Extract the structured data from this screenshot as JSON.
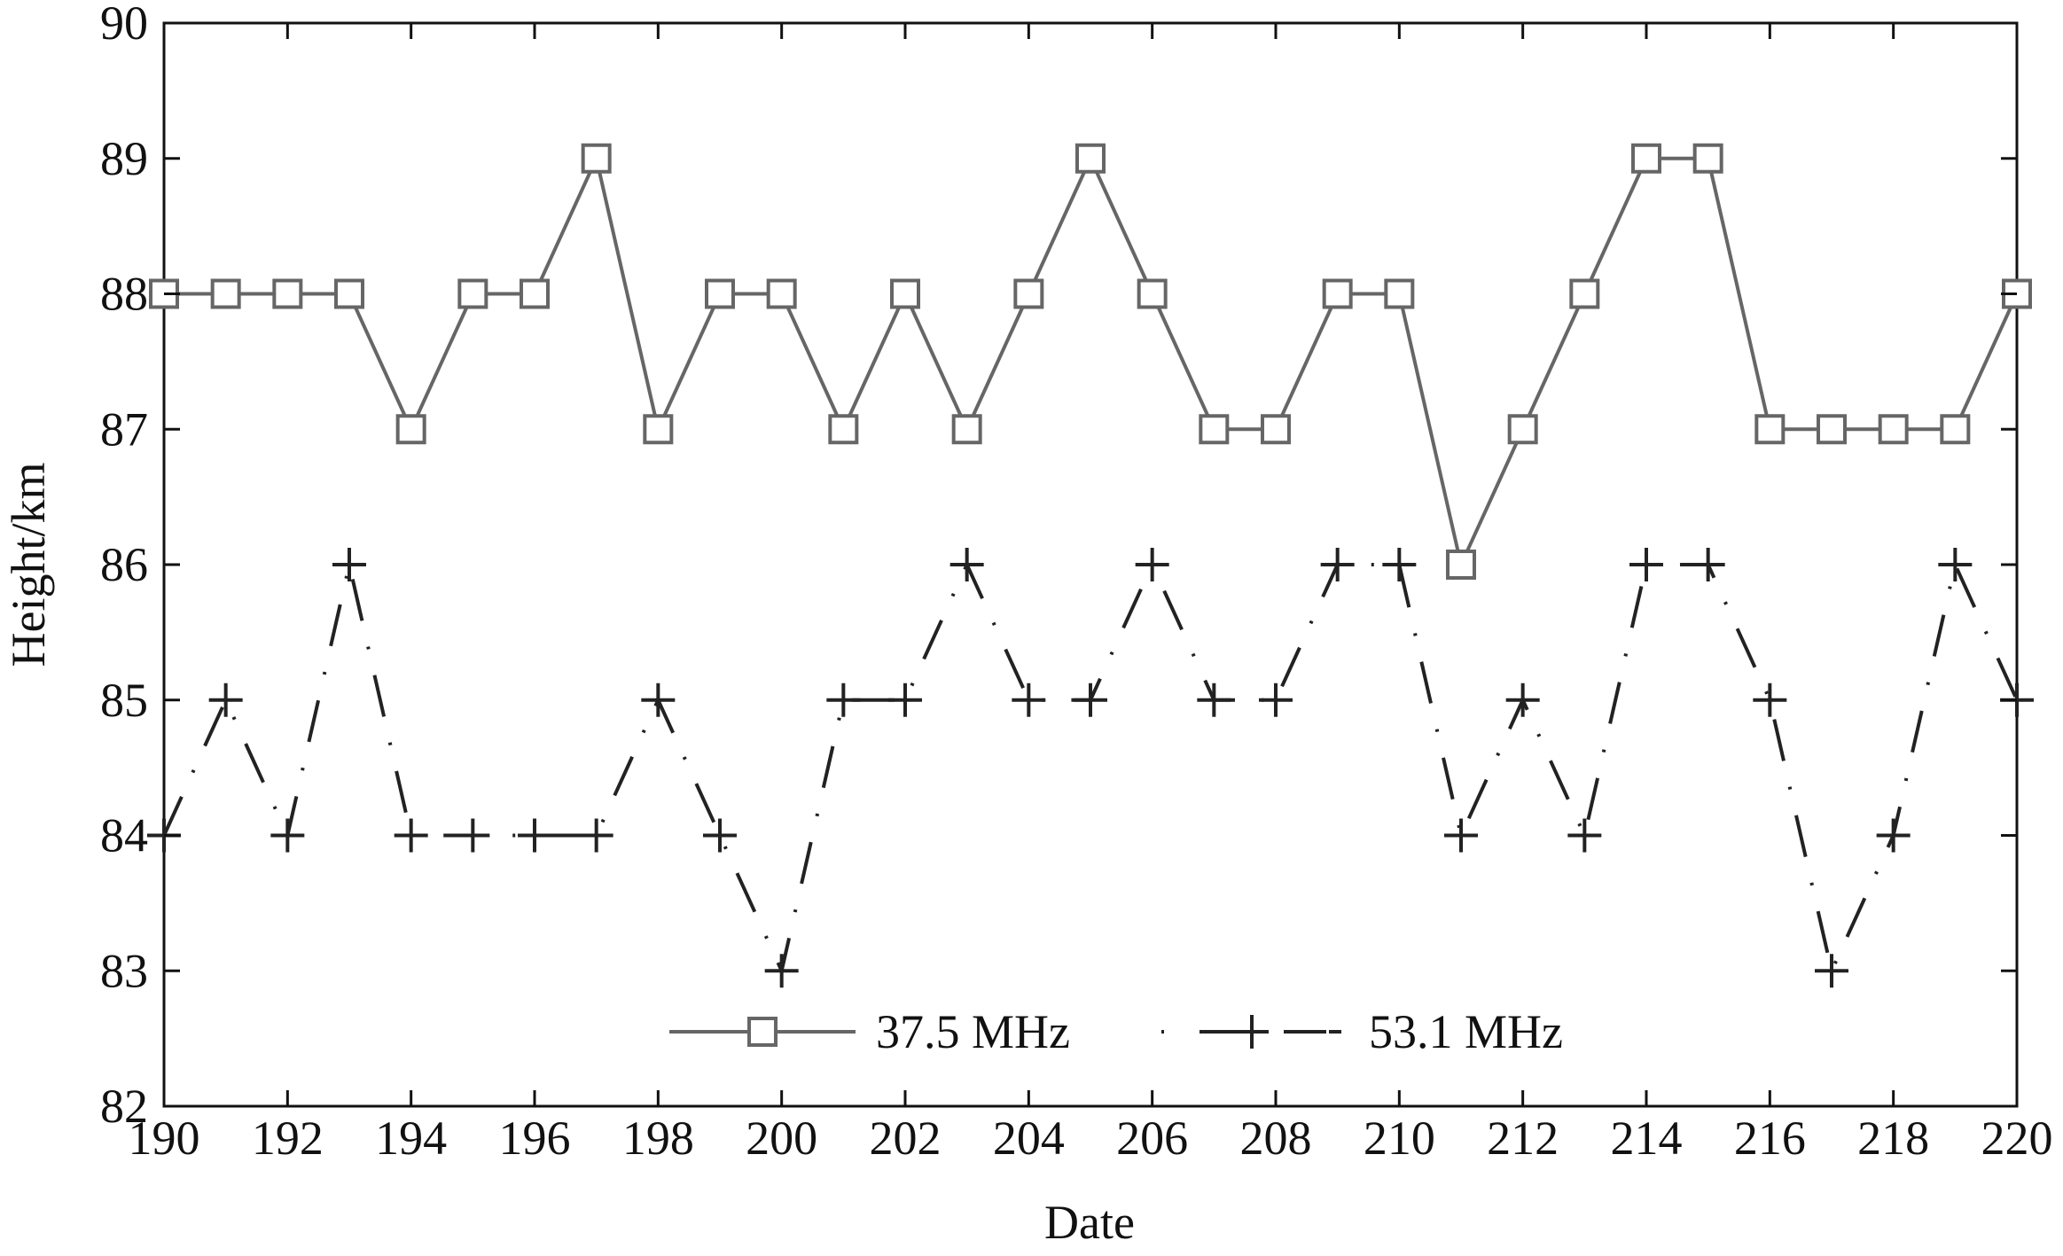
{
  "chart_data": {
    "type": "line",
    "title": "",
    "xlabel": "Date",
    "ylabel": "Height/km",
    "xlim": [
      190,
      220
    ],
    "ylim": [
      82,
      90
    ],
    "x_ticks": [
      "190",
      "192",
      "194",
      "196",
      "198",
      "200",
      "202",
      "204",
      "206",
      "208",
      "210",
      "212",
      "214",
      "216",
      "218",
      "220"
    ],
    "y_ticks": [
      "82",
      "83",
      "84",
      "85",
      "86",
      "87",
      "88",
      "89",
      "90"
    ],
    "grid": false,
    "legend_position": "bottom-center",
    "x": [
      190,
      191,
      192,
      193,
      194,
      195,
      196,
      197,
      198,
      199,
      200,
      201,
      202,
      203,
      204,
      205,
      206,
      207,
      208,
      209,
      210,
      211,
      212,
      213,
      214,
      215,
      216,
      217,
      218,
      219,
      220
    ],
    "series": [
      {
        "name": "37.5 MHz",
        "marker": "square",
        "line_style": "solid",
        "color": "#666666",
        "values": [
          88,
          88,
          88,
          88,
          87,
          88,
          88,
          89,
          87,
          88,
          88,
          87,
          88,
          87,
          88,
          89,
          88,
          87,
          87,
          88,
          88,
          86,
          87,
          88,
          89,
          89,
          87,
          87,
          87,
          87,
          88
        ]
      },
      {
        "name": "53.1 MHz",
        "marker": "plus",
        "line_style": "dash-dot",
        "color": "#222222",
        "values": [
          84,
          85,
          84,
          86,
          84,
          84,
          84,
          84,
          85,
          84,
          83,
          85,
          85,
          86,
          85,
          85,
          86,
          85,
          85,
          86,
          86,
          84,
          85,
          84,
          86,
          86,
          85,
          83,
          84,
          86,
          85
        ]
      }
    ]
  }
}
